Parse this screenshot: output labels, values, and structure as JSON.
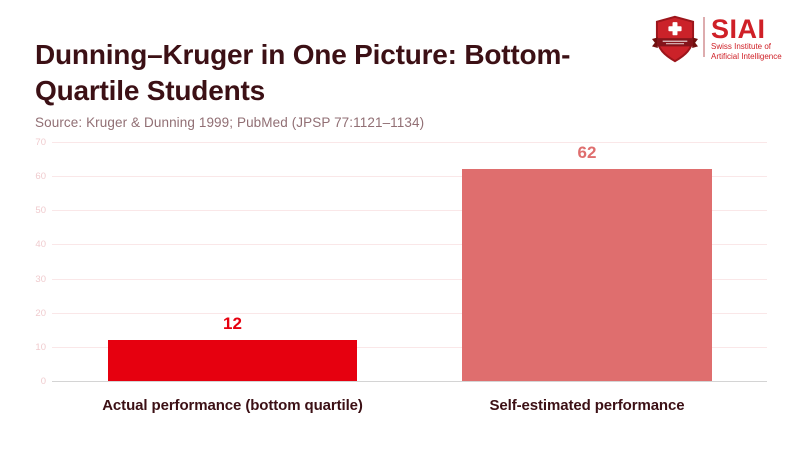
{
  "header": {
    "title": "Dunning–Kruger in One Picture: Bottom-Quartile Students",
    "source": "Source: Kruger & Dunning 1999; PubMed (JPSP 77:1121–1134)"
  },
  "logo": {
    "acronym": "SIAI",
    "tagline_line1": "Swiss Institute of",
    "tagline_line2": "Artificial Intelligence"
  },
  "colors": {
    "title_text": "#3c1015",
    "source_text": "#916f74",
    "brand_red": "#cf2027",
    "shield_red": "#cb2229",
    "shield_border": "#9c151b",
    "ribbon_red": "#84141a"
  },
  "chart_data": {
    "type": "bar",
    "title": "",
    "xlabel": "",
    "ylabel": "",
    "categories": [
      "Actual performance (bottom quartile)",
      "Self-estimated performance"
    ],
    "values": [
      12,
      62
    ],
    "bar_colors": [
      "#e6000f",
      "#df6e6e"
    ],
    "value_label_colors": [
      "#e6000f",
      "#df6e6e"
    ],
    "ylim": [
      0,
      70
    ],
    "yticks": [
      0,
      10,
      20,
      30,
      40,
      50,
      60,
      70
    ],
    "grid": "horizontal",
    "gridline_color": "#fae7e8",
    "axis_line_color": "#d4d4d4",
    "tick_label_color": "#f0cbce",
    "category_label_color": "#3c1015",
    "legend": "none"
  }
}
